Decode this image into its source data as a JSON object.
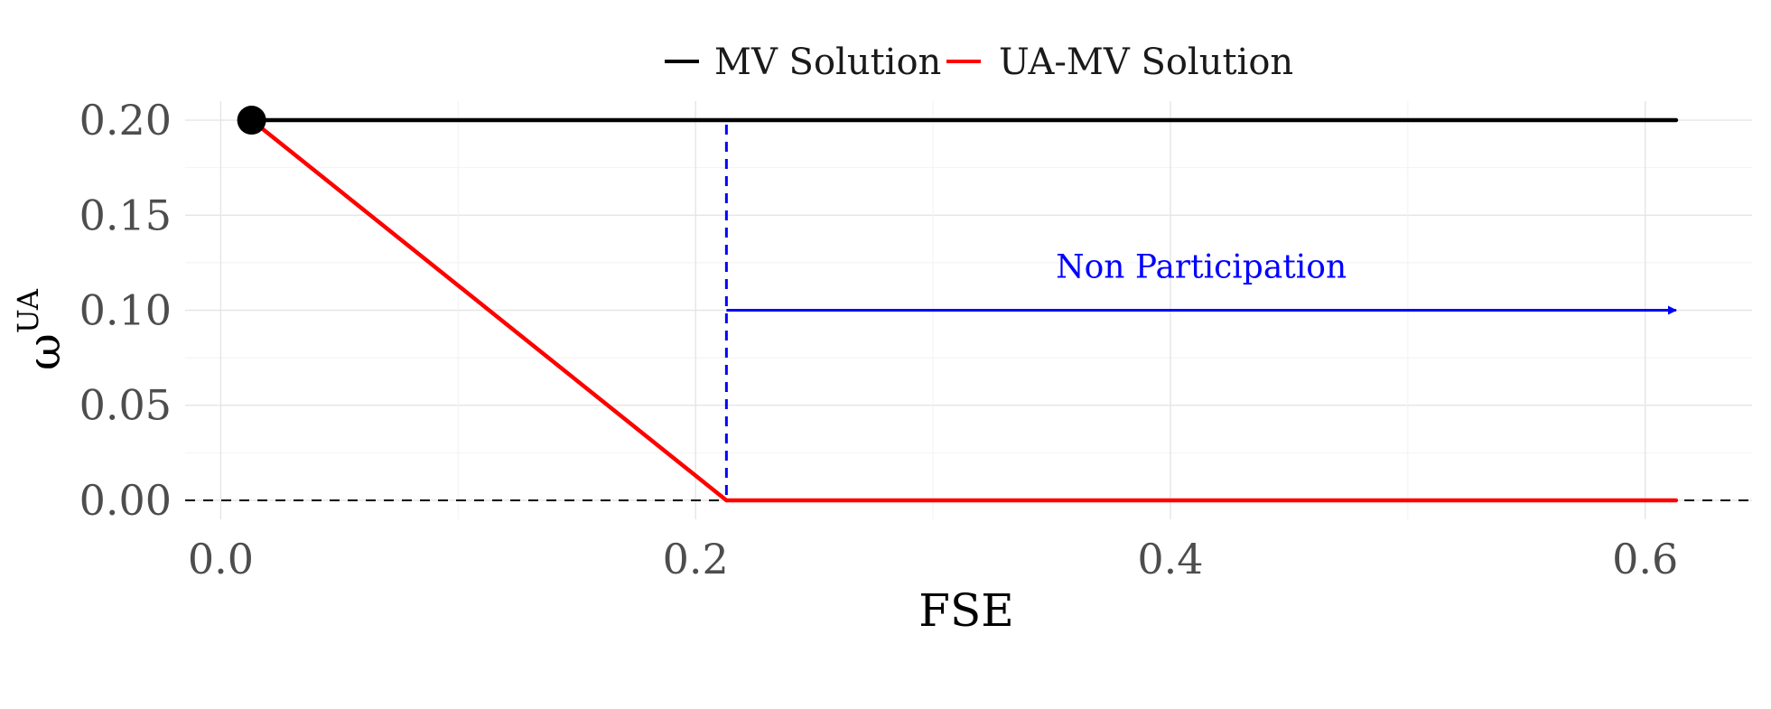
{
  "chart_data": {
    "type": "line",
    "title": "",
    "xlabel": "FSE",
    "ylabel": "ω",
    "ylabel_superscript": "UA",
    "xlim": [
      -0.015,
      0.645
    ],
    "ylim": [
      -0.01,
      0.21
    ],
    "x_ticks": [
      0.0,
      0.2,
      0.4,
      0.6
    ],
    "x_tick_labels": [
      "0.0",
      "0.2",
      "0.4",
      "0.6"
    ],
    "y_ticks": [
      0.0,
      0.05,
      0.1,
      0.15,
      0.2
    ],
    "y_tick_labels": [
      "0.00",
      "0.05",
      "0.10",
      "0.15",
      "0.20"
    ],
    "grid": true,
    "legend_position": "top",
    "series": [
      {
        "name": "MV Solution",
        "color": "#000000",
        "x": [
          0.013,
          0.613
        ],
        "y": [
          0.2,
          0.2
        ]
      },
      {
        "name": "UA-MV Solution",
        "color": "#ff0000",
        "x": [
          0.013,
          0.213,
          0.613
        ],
        "y": [
          0.2,
          0.0,
          0.0
        ]
      }
    ],
    "start_point": {
      "x": 0.013,
      "y": 0.2,
      "color": "#000000"
    },
    "annotations": {
      "threshold_vline": {
        "x": 0.213,
        "color": "#0000ff",
        "style": "dashed"
      },
      "zero_hline": {
        "y": 0.0,
        "color": "#000000",
        "style": "dashed"
      },
      "arrow": {
        "x_start": 0.213,
        "x_end": 0.613,
        "y": 0.1,
        "color": "#0000ff"
      },
      "label": {
        "text": "Non Participation",
        "x": 0.413,
        "y": 0.117,
        "color": "#0000ff"
      }
    }
  }
}
